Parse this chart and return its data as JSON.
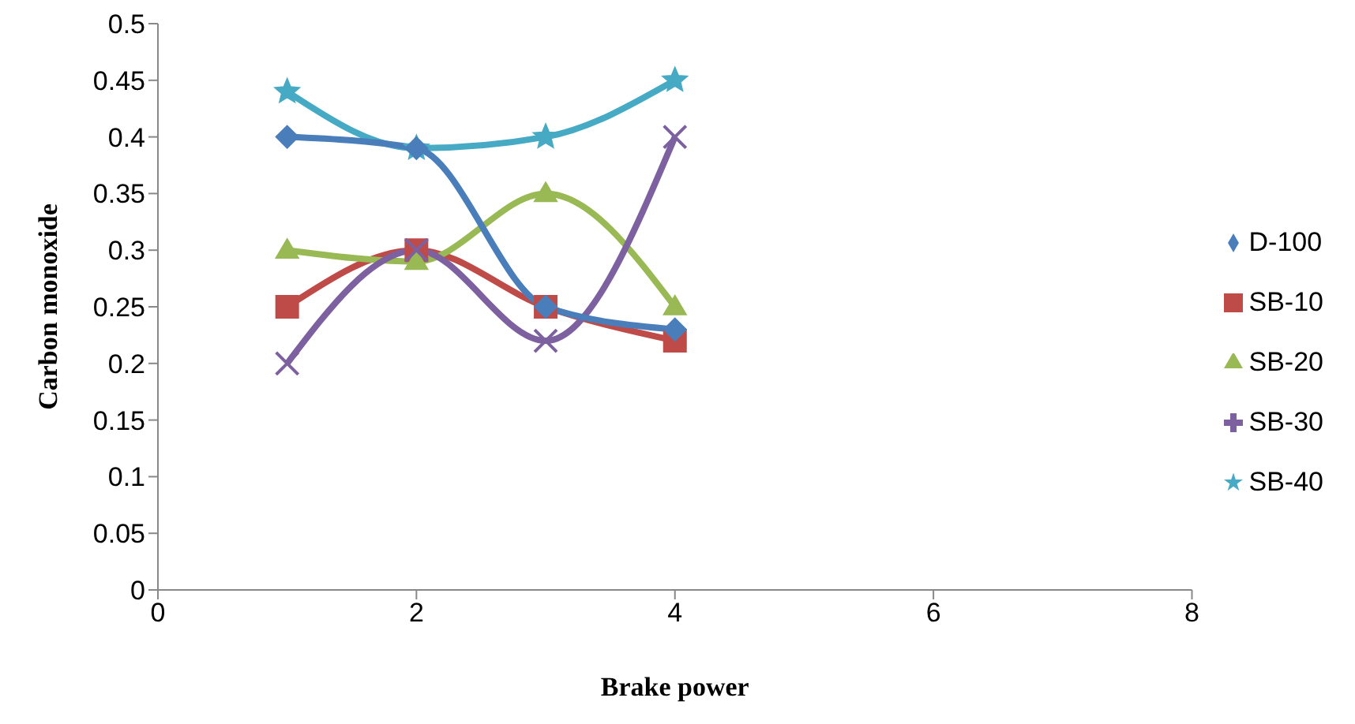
{
  "chart_data": {
    "type": "line",
    "xlabel": "Brake power",
    "ylabel": "Carbon monoxide",
    "x": [
      1,
      2,
      3,
      4
    ],
    "series": [
      {
        "name": "D-100",
        "color": "#4a7ebb",
        "marker": "diamond",
        "values": [
          0.4,
          0.39,
          0.25,
          0.23
        ]
      },
      {
        "name": "SB-10",
        "color": "#be4b48",
        "marker": "square",
        "values": [
          0.25,
          0.3,
          0.25,
          0.22
        ]
      },
      {
        "name": "SB-20",
        "color": "#98b954",
        "marker": "triangle",
        "values": [
          0.3,
          0.29,
          0.35,
          0.25
        ]
      },
      {
        "name": "SB-30",
        "color": "#7d60a0",
        "marker": "cross",
        "values": [
          0.2,
          0.3,
          0.22,
          0.4
        ]
      },
      {
        "name": "SB-40",
        "color": "#46aac5",
        "marker": "star",
        "values": [
          0.44,
          0.39,
          0.4,
          0.45
        ]
      }
    ],
    "xlim": [
      0,
      8
    ],
    "xticks": [
      0,
      2,
      4,
      6,
      8
    ],
    "ylim": [
      0,
      0.5
    ],
    "yticks": [
      0,
      0.05,
      0.1,
      0.15,
      0.2,
      0.25,
      0.3,
      0.35,
      0.4,
      0.45,
      0.5
    ],
    "grid": false,
    "legend": "right",
    "line_style": "solid"
  }
}
